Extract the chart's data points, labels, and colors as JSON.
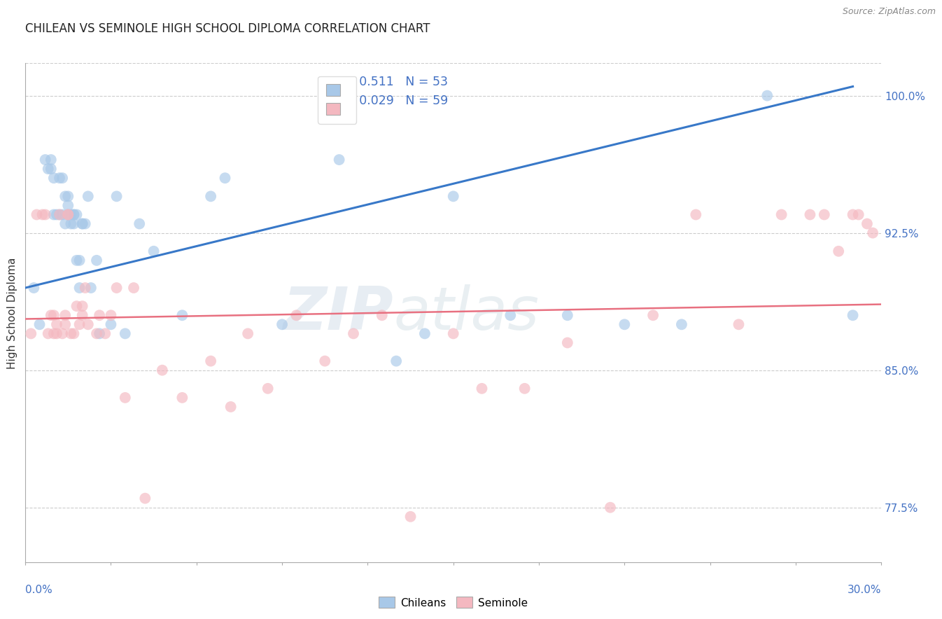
{
  "title": "CHILEAN VS SEMINOLE HIGH SCHOOL DIPLOMA CORRELATION CHART",
  "source": "Source: ZipAtlas.com",
  "ylabel": "High School Diploma",
  "right_yticks": [
    "100.0%",
    "92.5%",
    "85.0%",
    "77.5%"
  ],
  "right_ytick_vals": [
    1.0,
    0.925,
    0.85,
    0.775
  ],
  "legend_blue_text_r": "R =  0.511",
  "legend_blue_text_n": "N = 53",
  "legend_pink_text_r": "R =  0.029",
  "legend_pink_text_n": "N = 59",
  "blue_color": "#a8c8e8",
  "pink_color": "#f4b8c0",
  "blue_line_color": "#3878c8",
  "pink_line_color": "#e87080",
  "watermark_zip": "ZIP",
  "watermark_atlas": "atlas",
  "blue_scatter_x": [
    0.3,
    0.5,
    0.7,
    0.8,
    0.9,
    0.9,
    1.0,
    1.0,
    1.1,
    1.2,
    1.2,
    1.3,
    1.3,
    1.4,
    1.4,
    1.5,
    1.5,
    1.5,
    1.6,
    1.6,
    1.7,
    1.7,
    1.7,
    1.8,
    1.8,
    1.9,
    1.9,
    2.0,
    2.0,
    2.1,
    2.2,
    2.3,
    2.5,
    2.6,
    3.0,
    3.2,
    3.5,
    4.0,
    4.5,
    5.5,
    6.5,
    7.0,
    9.0,
    11.0,
    13.0,
    14.0,
    15.0,
    17.0,
    19.0,
    21.0,
    23.0,
    26.0,
    29.0
  ],
  "blue_scatter_y": [
    0.895,
    0.875,
    0.965,
    0.96,
    0.965,
    0.96,
    0.935,
    0.955,
    0.935,
    0.935,
    0.955,
    0.935,
    0.955,
    0.945,
    0.93,
    0.94,
    0.945,
    0.935,
    0.935,
    0.93,
    0.935,
    0.935,
    0.93,
    0.91,
    0.935,
    0.895,
    0.91,
    0.93,
    0.93,
    0.93,
    0.945,
    0.895,
    0.91,
    0.87,
    0.875,
    0.945,
    0.87,
    0.93,
    0.915,
    0.88,
    0.945,
    0.955,
    0.875,
    0.965,
    0.855,
    0.87,
    0.945,
    0.88,
    0.88,
    0.875,
    0.875,
    1.0,
    0.88
  ],
  "pink_scatter_x": [
    0.2,
    0.4,
    0.6,
    0.7,
    0.8,
    0.9,
    1.0,
    1.0,
    1.1,
    1.1,
    1.2,
    1.3,
    1.4,
    1.4,
    1.5,
    1.5,
    1.6,
    1.7,
    1.8,
    1.9,
    2.0,
    2.0,
    2.1,
    2.2,
    2.5,
    2.6,
    2.8,
    3.0,
    3.2,
    3.5,
    3.8,
    4.2,
    4.8,
    5.5,
    6.5,
    7.2,
    7.8,
    8.5,
    9.5,
    10.5,
    11.5,
    12.5,
    13.5,
    15.0,
    16.0,
    17.5,
    19.0,
    20.5,
    22.0,
    23.5,
    25.0,
    26.5,
    27.5,
    28.0,
    28.5,
    29.0,
    29.2,
    29.5,
    29.7
  ],
  "pink_scatter_y": [
    0.87,
    0.935,
    0.935,
    0.935,
    0.87,
    0.88,
    0.87,
    0.88,
    0.875,
    0.87,
    0.935,
    0.87,
    0.875,
    0.88,
    0.935,
    0.935,
    0.87,
    0.87,
    0.885,
    0.875,
    0.885,
    0.88,
    0.895,
    0.875,
    0.87,
    0.88,
    0.87,
    0.88,
    0.895,
    0.835,
    0.895,
    0.78,
    0.85,
    0.835,
    0.855,
    0.83,
    0.87,
    0.84,
    0.88,
    0.855,
    0.87,
    0.88,
    0.77,
    0.87,
    0.84,
    0.84,
    0.865,
    0.775,
    0.88,
    0.935,
    0.875,
    0.935,
    0.935,
    0.935,
    0.915,
    0.935,
    0.935,
    0.93,
    0.925
  ],
  "xmin": 0.0,
  "xmax": 30.0,
  "ymin": 0.745,
  "ymax": 1.018,
  "blue_trend": [
    0.0,
    0.895,
    29.0,
    1.005
  ],
  "pink_trend": [
    0.0,
    0.878,
    30.0,
    0.886
  ]
}
